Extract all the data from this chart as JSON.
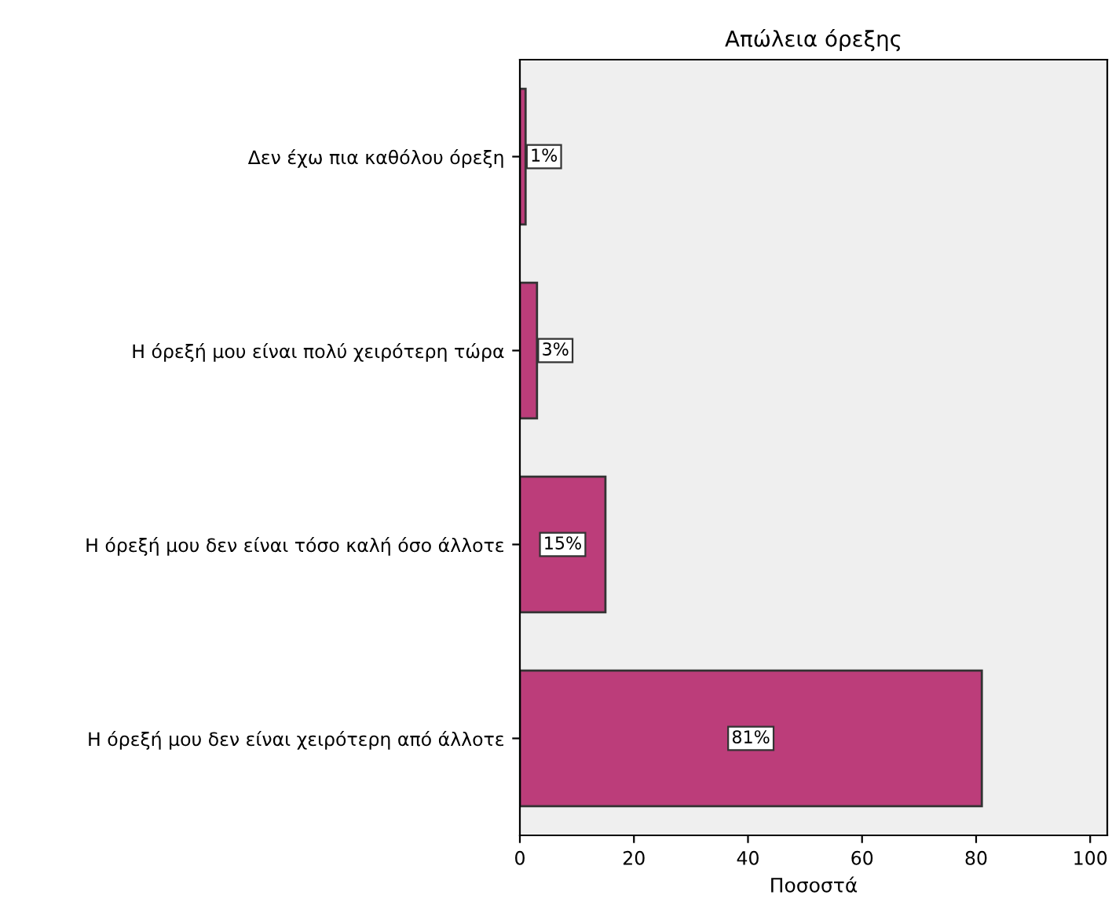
{
  "chart_data": {
    "type": "bar",
    "orientation": "horizontal",
    "title": "Απώλεια όρεξης",
    "xlabel": "Ποσοστά",
    "categories": [
      "Δεν έχω πια καθόλου όρεξη",
      "Η όρεξή μου είναι πολύ χειρότερη τώρα",
      "Η όρεξή μου δεν είναι τόσο καλή όσο άλλοτε",
      "Η όρεξή μου δεν είναι χειρότερη από άλλοτε"
    ],
    "values": [
      1,
      3,
      15,
      81
    ],
    "color": "#bc3d7a",
    "value_labels": [
      "1%",
      "3%",
      "15%",
      "81%"
    ],
    "xlim": [
      0,
      103
    ],
    "xticks": [
      0,
      20,
      40,
      60,
      80,
      100
    ],
    "grid": false
  }
}
